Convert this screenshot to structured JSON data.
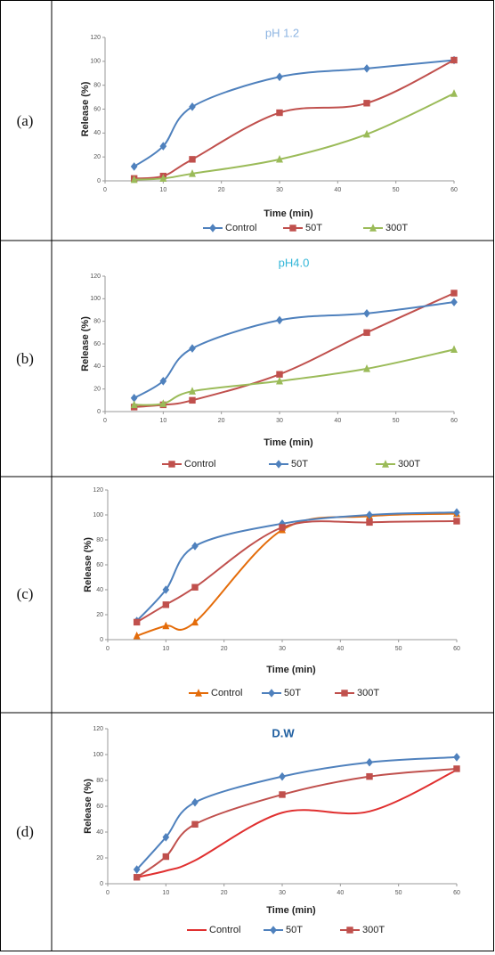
{
  "chart_data": [
    {
      "type": "line",
      "label": "(a)",
      "title": "pH 1.2",
      "title_color": "#8db4e2",
      "x_label": "Time (min)",
      "y_label": "Release (%)",
      "x": [
        5,
        10,
        15,
        30,
        45,
        60
      ],
      "xlim": [
        0,
        60
      ],
      "xticks": [
        0,
        10,
        20,
        30,
        40,
        50,
        60
      ],
      "ylim": [
        0,
        120
      ],
      "yticks": [
        0,
        20,
        40,
        60,
        80,
        100,
        120
      ],
      "series": [
        {
          "name": "Control",
          "color": "#4f81bd",
          "marker": "diamond",
          "values": [
            12,
            29,
            62,
            87,
            94,
            101
          ]
        },
        {
          "name": "50T",
          "color": "#c0504d",
          "marker": "square",
          "values": [
            2,
            4,
            18,
            57,
            65,
            101
          ]
        },
        {
          "name": "300T",
          "color": "#9bbb59",
          "marker": "triangle",
          "values": [
            1,
            2,
            6,
            18,
            39,
            73
          ]
        }
      ]
    },
    {
      "type": "line",
      "label": "(b)",
      "title": "pH4.0",
      "title_color": "#31b6d8",
      "x_label": "Time (min)",
      "y_label": "Release (%)",
      "x": [
        5,
        10,
        15,
        30,
        45,
        60
      ],
      "xlim": [
        0,
        60
      ],
      "xticks": [
        0,
        10,
        20,
        30,
        40,
        50,
        60
      ],
      "ylim": [
        0,
        120
      ],
      "yticks": [
        0,
        20,
        40,
        60,
        80,
        100,
        120
      ],
      "series": [
        {
          "name": "Control",
          "color": "#c0504d",
          "marker": "square",
          "values": [
            4,
            6,
            10,
            33,
            70,
            105
          ]
        },
        {
          "name": "50T",
          "color": "#4f81bd",
          "marker": "diamond",
          "values": [
            12,
            27,
            56,
            81,
            87,
            97
          ]
        },
        {
          "name": "300T",
          "color": "#9bbb59",
          "marker": "triangle",
          "values": [
            6,
            7,
            18,
            27,
            38,
            55
          ]
        }
      ]
    },
    {
      "type": "line",
      "label": "(c)",
      "x_label": "Time (min)",
      "y_label": "Release (%)",
      "x": [
        5,
        10,
        15,
        30,
        45,
        60
      ],
      "xlim": [
        0,
        60
      ],
      "xticks": [
        0,
        10,
        20,
        30,
        40,
        50,
        60
      ],
      "ylim": [
        0,
        120
      ],
      "yticks": [
        0,
        20,
        40,
        60,
        80,
        100,
        120
      ],
      "series": [
        {
          "name": "Control",
          "color": "#e46c0a",
          "marker": "triangle",
          "values": [
            3,
            11,
            14,
            88,
            99,
            101
          ]
        },
        {
          "name": "50T",
          "color": "#4f81bd",
          "marker": "diamond",
          "values": [
            15,
            40,
            75,
            93,
            100,
            102
          ]
        },
        {
          "name": "300T",
          "color": "#c0504d",
          "marker": "square",
          "values": [
            14,
            28,
            42,
            90,
            94,
            95
          ]
        }
      ]
    },
    {
      "type": "line",
      "label": "(d)",
      "title": "D.W",
      "title_color": "#1f5fa0",
      "x_label": "Time (min)",
      "y_label": "Release (%)",
      "x": [
        5,
        10,
        15,
        30,
        45,
        60
      ],
      "xlim": [
        0,
        60
      ],
      "xticks": [
        0,
        10,
        20,
        30,
        40,
        50,
        60
      ],
      "ylim": [
        0,
        120
      ],
      "yticks": [
        0,
        20,
        40,
        60,
        80,
        100,
        120
      ],
      "series": [
        {
          "name": "Control",
          "color": "#e03030",
          "marker": null,
          "values": [
            5,
            10,
            18,
            55,
            56,
            88
          ]
        },
        {
          "name": "50T",
          "color": "#4f81bd",
          "marker": "diamond",
          "values": [
            11,
            36,
            63,
            83,
            94,
            98
          ]
        },
        {
          "name": "300T",
          "color": "#c0504d",
          "marker": "square",
          "values": [
            5,
            21,
            46,
            69,
            83,
            89
          ]
        }
      ]
    }
  ]
}
